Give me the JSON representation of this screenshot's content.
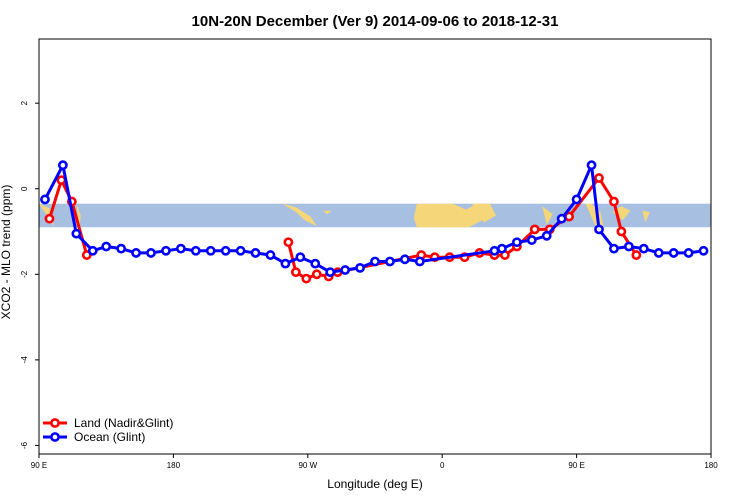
{
  "chart_data": {
    "type": "line",
    "title": "10N-20N December (Ver 9)   2014-09-06 to 2018-12-31",
    "xlabel": "Longitude (deg E)",
    "ylabel": "XCO2 - MLO trend (ppm)",
    "xlim": [
      90,
      540
    ],
    "ylim": [
      -6.2,
      3.5
    ],
    "x_ticks": [
      {
        "value": 90,
        "label": "90 E"
      },
      {
        "value": 180,
        "label": "180"
      },
      {
        "value": 270,
        "label": "90 W"
      },
      {
        "value": 360,
        "label": "0"
      },
      {
        "value": 450,
        "label": "90 E"
      },
      {
        "value": 540,
        "label": "180"
      }
    ],
    "y_ticks": [
      {
        "value": 2,
        "label": "2"
      },
      {
        "value": 0,
        "label": "0"
      },
      {
        "value": -2,
        "label": "-2"
      },
      {
        "value": -4,
        "label": "-4"
      },
      {
        "value": -6,
        "label": "-6"
      }
    ],
    "map_band": {
      "lat_min_value": -0.9,
      "lat_max_value": -0.35,
      "ocean_color": "#a7bfe0",
      "land_color": "#f5d77a"
    },
    "legend_position": "bottom-left",
    "series": [
      {
        "name": "Land (Nadir&Glint)",
        "color": "#ff0000",
        "x": [
          97,
          105,
          112,
          122,
          257,
          262,
          269,
          276,
          284,
          290,
          346,
          355,
          365,
          375,
          385,
          395,
          402,
          410,
          422,
          432,
          445,
          465,
          475,
          480,
          490
        ],
        "y": [
          -0.7,
          0.2,
          -0.3,
          -1.55,
          -1.25,
          -1.95,
          -2.1,
          -2.0,
          -2.05,
          -1.95,
          -1.55,
          -1.6,
          -1.6,
          -1.6,
          -1.5,
          -1.55,
          -1.55,
          -1.35,
          -0.95,
          -0.95,
          -0.65,
          0.25,
          -0.3,
          -1.0,
          -1.55
        ]
      },
      {
        "name": "Ocean (Glint)",
        "color": "#0000ff",
        "x": [
          94,
          106,
          115,
          126,
          135,
          145,
          155,
          165,
          175,
          185,
          195,
          205,
          215,
          225,
          235,
          245,
          255,
          265,
          275,
          285,
          295,
          305,
          315,
          325,
          335,
          345,
          395,
          400,
          410,
          420,
          430,
          440,
          450,
          460,
          465,
          475,
          485,
          495,
          505,
          515,
          525,
          535
        ],
        "y": [
          -0.25,
          0.55,
          -1.05,
          -1.45,
          -1.35,
          -1.4,
          -1.5,
          -1.5,
          -1.45,
          -1.4,
          -1.45,
          -1.45,
          -1.45,
          -1.45,
          -1.5,
          -1.55,
          -1.75,
          -1.6,
          -1.75,
          -1.95,
          -1.9,
          -1.85,
          -1.7,
          -1.7,
          -1.65,
          -1.7,
          -1.45,
          -1.4,
          -1.25,
          -1.2,
          -1.1,
          -0.7,
          -0.25,
          0.55,
          -0.95,
          -1.4,
          -1.35,
          -1.4,
          -1.5,
          -1.5,
          -1.5,
          -1.45
        ]
      }
    ]
  }
}
